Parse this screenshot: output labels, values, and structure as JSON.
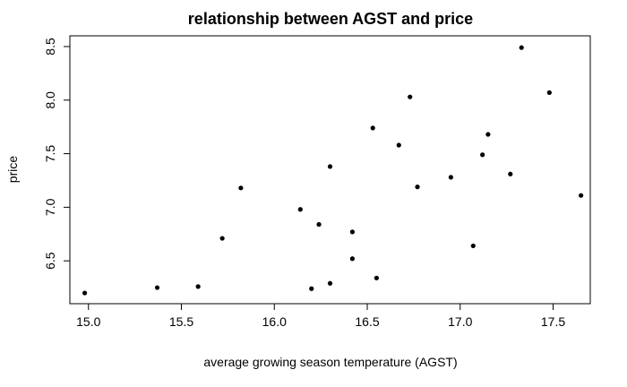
{
  "chart_data": {
    "type": "scatter",
    "title": "relationship between AGST and price",
    "xlabel": "average growing season temperature (AGST)",
    "ylabel": "price",
    "xlim": [
      14.9,
      17.7
    ],
    "ylim": [
      6.1,
      8.6
    ],
    "xticks": [
      15.0,
      15.5,
      16.0,
      16.5,
      17.0,
      17.5
    ],
    "xtick_labels": [
      "15.0",
      "15.5",
      "16.0",
      "16.5",
      "17.0",
      "17.5"
    ],
    "yticks": [
      6.5,
      7.0,
      7.5,
      8.0,
      8.5
    ],
    "ytick_labels": [
      "6.5",
      "7.0",
      "7.5",
      "8.0",
      "8.5"
    ],
    "grid": false,
    "points": [
      {
        "x": 14.98,
        "y": 6.2
      },
      {
        "x": 15.37,
        "y": 6.25
      },
      {
        "x": 15.59,
        "y": 6.26
      },
      {
        "x": 15.72,
        "y": 6.71
      },
      {
        "x": 15.82,
        "y": 7.18
      },
      {
        "x": 16.14,
        "y": 6.98
      },
      {
        "x": 16.2,
        "y": 6.24
      },
      {
        "x": 16.24,
        "y": 6.84
      },
      {
        "x": 16.3,
        "y": 6.29
      },
      {
        "x": 16.3,
        "y": 7.38
      },
      {
        "x": 16.42,
        "y": 6.77
      },
      {
        "x": 16.42,
        "y": 6.52
      },
      {
        "x": 16.53,
        "y": 7.74
      },
      {
        "x": 16.55,
        "y": 6.34
      },
      {
        "x": 16.67,
        "y": 7.58
      },
      {
        "x": 16.73,
        "y": 8.03
      },
      {
        "x": 16.77,
        "y": 7.19
      },
      {
        "x": 16.95,
        "y": 7.28
      },
      {
        "x": 17.07,
        "y": 6.64
      },
      {
        "x": 17.12,
        "y": 7.49
      },
      {
        "x": 17.15,
        "y": 7.68
      },
      {
        "x": 17.27,
        "y": 7.31
      },
      {
        "x": 17.33,
        "y": 8.49
      },
      {
        "x": 17.48,
        "y": 8.07
      },
      {
        "x": 17.65,
        "y": 7.11
      }
    ]
  }
}
